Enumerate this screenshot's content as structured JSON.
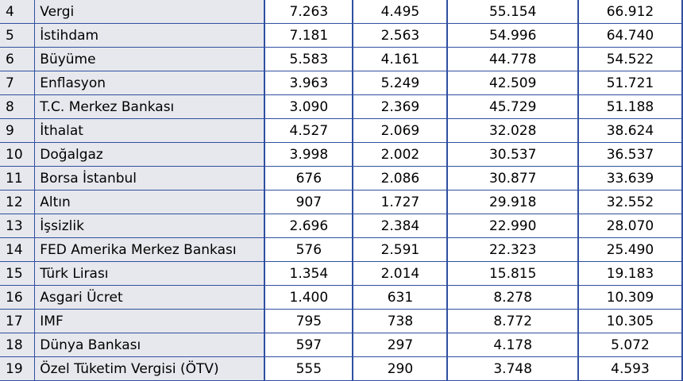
{
  "rows": [
    {
      "rank": "4",
      "topic": "Vergi",
      "c1": "7.263",
      "c2": "4.495",
      "c3": "55.154",
      "c4": "66.912"
    },
    {
      "rank": "5",
      "topic": "İstihdam",
      "c1": "7.181",
      "c2": "2.563",
      "c3": "54.996",
      "c4": "64.740"
    },
    {
      "rank": "6",
      "topic": "Büyüme",
      "c1": "5.583",
      "c2": "4.161",
      "c3": "44.778",
      "c4": "54.522"
    },
    {
      "rank": "7",
      "topic": "Enflasyon",
      "c1": "3.963",
      "c2": "5.249",
      "c3": "42.509",
      "c4": "51.721"
    },
    {
      "rank": "8",
      "topic": "T.C. Merkez Bankası",
      "c1": "3.090",
      "c2": "2.369",
      "c3": "45.729",
      "c4": "51.188"
    },
    {
      "rank": "9",
      "topic": "İthalat",
      "c1": "4.527",
      "c2": "2.069",
      "c3": "32.028",
      "c4": "38.624"
    },
    {
      "rank": "10",
      "topic": "Doğalgaz",
      "c1": "3.998",
      "c2": "2.002",
      "c3": "30.537",
      "c4": "36.537"
    },
    {
      "rank": "11",
      "topic": "Borsa İstanbul",
      "c1": "676",
      "c2": "2.086",
      "c3": "30.877",
      "c4": "33.639"
    },
    {
      "rank": "12",
      "topic": "Altın",
      "c1": "907",
      "c2": "1.727",
      "c3": "29.918",
      "c4": "32.552"
    },
    {
      "rank": "13",
      "topic": "İşsizlik",
      "c1": "2.696",
      "c2": "2.384",
      "c3": "22.990",
      "c4": "28.070"
    },
    {
      "rank": "14",
      "topic": "FED Amerika Merkez Bankası",
      "c1": "576",
      "c2": "2.591",
      "c3": "22.323",
      "c4": "25.490"
    },
    {
      "rank": "15",
      "topic": "Türk Lirası",
      "c1": "1.354",
      "c2": "2.014",
      "c3": "15.815",
      "c4": "19.183"
    },
    {
      "rank": "16",
      "topic": "Asgari Ücret",
      "c1": "1.400",
      "c2": "631",
      "c3": "8.278",
      "c4": "10.309"
    },
    {
      "rank": "17",
      "topic": "IMF",
      "c1": "795",
      "c2": "738",
      "c3": "8.772",
      "c4": "10.305"
    },
    {
      "rank": "18",
      "topic": "Dünya Bankası",
      "c1": "597",
      "c2": "297",
      "c3": "4.178",
      "c4": "5.072"
    },
    {
      "rank": "19",
      "topic": "Özel Tüketim Vergisi (ÖTV)",
      "c1": "555",
      "c2": "290",
      "c3": "3.748",
      "c4": "4.593"
    }
  ]
}
